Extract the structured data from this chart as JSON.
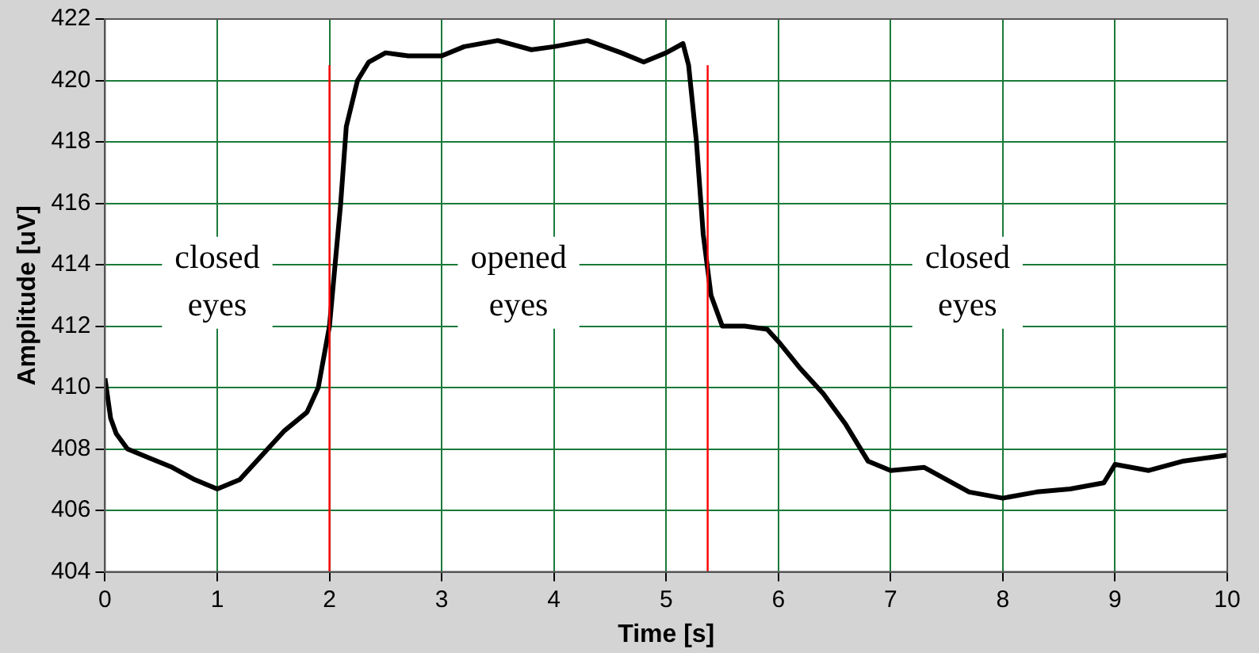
{
  "chart_data": {
    "type": "line",
    "xlabel": "Time [s]",
    "ylabel": "Amplitude [uV]",
    "x": [
      0,
      0.05,
      0.1,
      0.2,
      0.4,
      0.6,
      0.8,
      1.0,
      1.2,
      1.4,
      1.6,
      1.8,
      1.9,
      2.0,
      2.05,
      2.1,
      2.15,
      2.25,
      2.35,
      2.5,
      2.7,
      3.0,
      3.2,
      3.5,
      3.8,
      4.0,
      4.3,
      4.6,
      4.8,
      5.0,
      5.15,
      5.2,
      5.27,
      5.33,
      5.4,
      5.5,
      5.7,
      5.9,
      6.0,
      6.2,
      6.4,
      6.6,
      6.8,
      7.0,
      7.3,
      7.5,
      7.7,
      8.0,
      8.3,
      8.6,
      8.9,
      9.0,
      9.3,
      9.6,
      10
    ],
    "series": [
      {
        "color": "#000000",
        "values": [
          410.3,
          409,
          408.5,
          408,
          407.7,
          407.4,
          407,
          406.7,
          407,
          407.8,
          408.6,
          409.2,
          410,
          412,
          414,
          416,
          418.5,
          420,
          420.6,
          420.9,
          420.8,
          420.8,
          421.1,
          421.3,
          421,
          421.1,
          421.3,
          420.9,
          420.6,
          420.9,
          421.2,
          420.5,
          418,
          415,
          413,
          412,
          412,
          411.9,
          411.5,
          410.6,
          409.8,
          408.8,
          407.6,
          407.3,
          407.4,
          407,
          406.6,
          406.4,
          406.6,
          406.7,
          406.9,
          407.5,
          407.3,
          407.6,
          407.8
        ]
      }
    ],
    "xlim": [
      0,
      10
    ],
    "xticks": [
      0,
      1,
      2,
      3,
      4,
      5,
      6,
      7,
      8,
      9,
      10
    ],
    "ylim": [
      404,
      422
    ],
    "yticks": [
      404,
      406,
      408,
      410,
      412,
      414,
      416,
      418,
      420,
      422
    ],
    "grid": true,
    "legend": false,
    "marker": "none",
    "line_style": "solid",
    "ref_lines": [
      {
        "axis": "x",
        "value": 2,
        "color": "#ff0000"
      },
      {
        "axis": "x",
        "value": 5.37,
        "color": "#ff0000"
      }
    ],
    "annotations": [
      "closed eyes",
      "opened eyes",
      "closed eyes"
    ]
  }
}
